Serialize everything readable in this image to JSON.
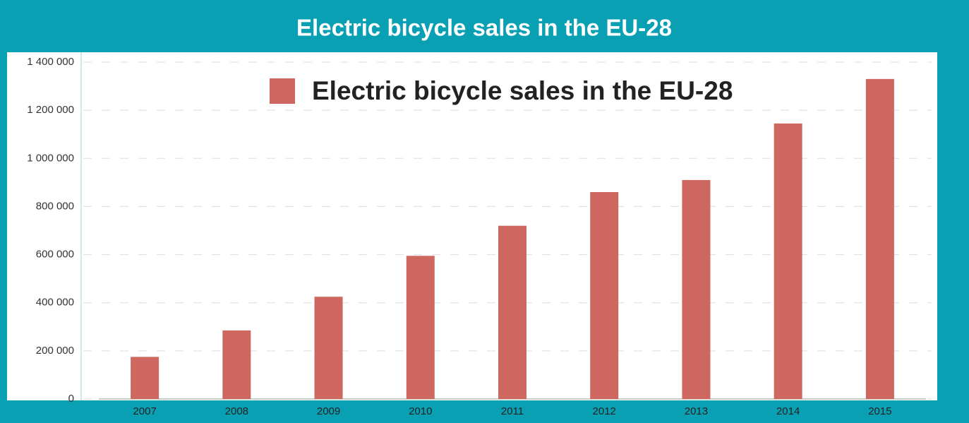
{
  "chart_data": {
    "type": "bar",
    "title": "Electric bicycle sales in the EU-28",
    "categories": [
      "2007",
      "2008",
      "2009",
      "2010",
      "2011",
      "2012",
      "2013",
      "2014",
      "2015"
    ],
    "series": [
      {
        "name": "Electric bicycle sales in the EU-28",
        "color": "#cd6760",
        "values": [
          175000,
          285000,
          425000,
          595000,
          720000,
          860000,
          910000,
          1145000,
          1330000
        ]
      }
    ],
    "ylim": [
      0,
      1400000
    ],
    "yticks": [
      0,
      {
        "value": 200000,
        "label": "200 000"
      },
      {
        "value": 400000,
        "label": "400 000"
      },
      {
        "value": 600000,
        "label": "600 000"
      },
      {
        "value": 800000,
        "label": "800 000"
      },
      {
        "value": 1000000,
        "label": "1 000 000"
      },
      {
        "value": 1200000,
        "label": "1 200 000"
      },
      {
        "value": 1400000,
        "label": "1 400 000"
      }
    ],
    "grid": true,
    "legend": "top"
  }
}
